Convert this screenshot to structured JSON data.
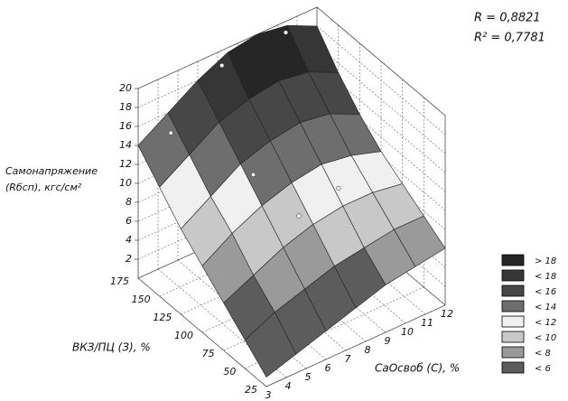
{
  "chart_data": {
    "type": "surface3d",
    "z_label": [
      "Самонапряжение",
      "(Rбсп), кгс/см²"
    ],
    "x_label": "CaOсвоб (С), %",
    "y_label": "ВКЗ/ПЦ (З), %",
    "annotations": [
      "R   = 0,8821",
      "R² = 0,7781"
    ],
    "x": [
      3,
      4.5,
      6,
      7.5,
      9,
      10.5,
      12
    ],
    "y": [
      25,
      50,
      75,
      100,
      125,
      150,
      175
    ],
    "z": [
      [
        1,
        2,
        3,
        4,
        5,
        5.5,
        6
      ],
      [
        3,
        4.5,
        5.5,
        6.5,
        7,
        7.5,
        7.5
      ],
      [
        5,
        6.5,
        8,
        9,
        9.5,
        9.5,
        9
      ],
      [
        7,
        9,
        10.5,
        11.5,
        12,
        11.5,
        10.5
      ],
      [
        9,
        11,
        13,
        14,
        14.5,
        14,
        12.5
      ],
      [
        11.5,
        13.5,
        15.5,
        16.5,
        17,
        16.5,
        15
      ],
      [
        14,
        16,
        18,
        19.5,
        20,
        19.5,
        18
      ]
    ],
    "points": {
      "x": [
        4,
        7,
        10,
        6,
        7,
        9
      ],
      "y": [
        160,
        170,
        165,
        110,
        80,
        80
      ],
      "z": [
        15.5,
        19,
        20,
        13,
        10,
        11
      ]
    },
    "xlim": [
      3,
      12
    ],
    "ylim": [
      25,
      175
    ],
    "zlim": [
      0,
      20
    ],
    "xticks": [
      3,
      4,
      5,
      6,
      7,
      8,
      9,
      10,
      11,
      12
    ],
    "yticks": [
      25,
      50,
      75,
      100,
      125,
      150,
      175
    ],
    "zticks": [
      2,
      4,
      6,
      8,
      10,
      12,
      14,
      16,
      18,
      20
    ],
    "levels": [
      {
        "label": "> 18",
        "value": 18,
        "color": "#262626"
      },
      {
        "label": "< 18",
        "value": 18,
        "color": "#363636"
      },
      {
        "label": "< 16",
        "value": 16,
        "color": "#474747"
      },
      {
        "label": "< 14",
        "value": 14,
        "color": "#6e6e6e"
      },
      {
        "label": "< 12",
        "value": 12,
        "color": "#f0f0f0"
      },
      {
        "label": "< 10",
        "value": 10,
        "color": "#c8c8c8"
      },
      {
        "label": "< 8",
        "value": 8,
        "color": "#9a9a9a"
      },
      {
        "label": "< 6",
        "value": 6,
        "color": "#5c5c5c"
      }
    ]
  }
}
